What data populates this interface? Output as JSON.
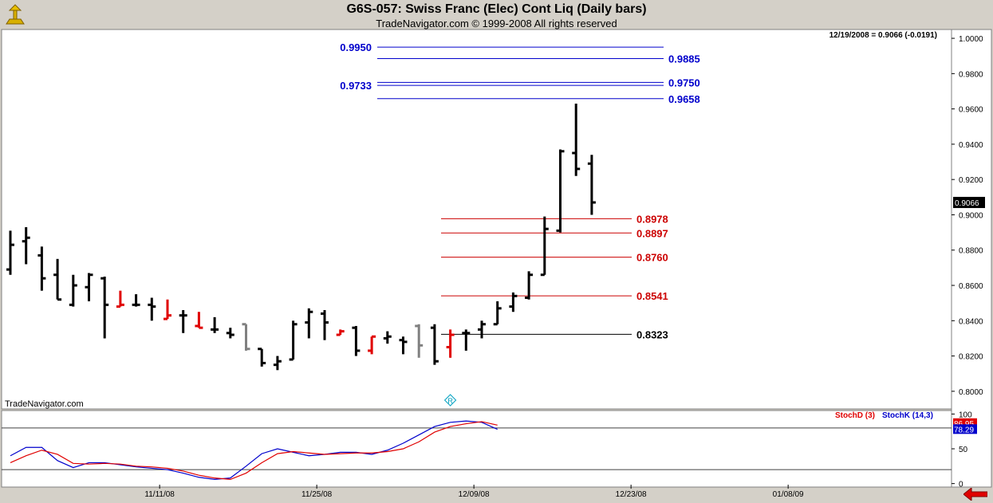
{
  "header": {
    "title": "G6S-057:  Swiss Franc (Elec) Cont Liq  (Daily bars)",
    "subtitle": "TradeNavigator.com © 1999-2008 All rights reserved",
    "status": "12/19/2008 = 0.9066 (-0.0191)",
    "watermark": "TradeNavigator.com",
    "marker": "R"
  },
  "colors": {
    "up_bar": "#000000",
    "down_bar": "#e00000",
    "neutral_bar": "#808080",
    "fib_upper": "#0000cc",
    "fib_lower": "#cc0000",
    "stoch_d": "#e00000",
    "stoch_k": "#0000cc"
  },
  "chart_data": [
    {
      "type": "ohlc",
      "name": "price",
      "ylim": [
        0.79,
        1.005
      ],
      "y_ticks": [
        "0.8000",
        "0.8200",
        "0.8400",
        "0.8600",
        "0.8800",
        "0.9000",
        "0.9200",
        "0.9400",
        "0.9600",
        "0.9800",
        "1.0000"
      ],
      "y_tick_values": [
        0.8,
        0.82,
        0.84,
        0.86,
        0.88,
        0.9,
        0.92,
        0.94,
        0.96,
        0.98,
        1.0
      ],
      "x_ticks": [
        "11/11/08",
        "11/25/08",
        "12/09/08",
        "12/23/08",
        "01/08/09"
      ],
      "x_tick_index": [
        9.5,
        19.5,
        29.5,
        39.5,
        49.5
      ],
      "last_price_label": "0.9066",
      "bars": [
        {
          "o": 0.869,
          "h": 0.891,
          "l": 0.866,
          "c": 0.883,
          "k": "u"
        },
        {
          "o": 0.885,
          "h": 0.893,
          "l": 0.872,
          "c": 0.887,
          "k": "u"
        },
        {
          "o": 0.877,
          "h": 0.882,
          "l": 0.857,
          "c": 0.864,
          "k": "u"
        },
        {
          "o": 0.866,
          "h": 0.875,
          "l": 0.852,
          "c": 0.852,
          "k": "u"
        },
        {
          "o": 0.849,
          "h": 0.866,
          "l": 0.848,
          "c": 0.86,
          "k": "u"
        },
        {
          "o": 0.859,
          "h": 0.867,
          "l": 0.851,
          "c": 0.866,
          "k": "u"
        },
        {
          "o": 0.864,
          "h": 0.865,
          "l": 0.83,
          "c": 0.849,
          "k": "u"
        },
        {
          "o": 0.848,
          "h": 0.857,
          "l": 0.848,
          "c": 0.849,
          "k": "d"
        },
        {
          "o": 0.849,
          "h": 0.855,
          "l": 0.848,
          "c": 0.849,
          "k": "u"
        },
        {
          "o": 0.849,
          "h": 0.853,
          "l": 0.84,
          "c": 0.848,
          "k": "u"
        },
        {
          "o": 0.841,
          "h": 0.852,
          "l": 0.841,
          "c": 0.843,
          "k": "d"
        },
        {
          "o": 0.843,
          "h": 0.846,
          "l": 0.833,
          "c": 0.843,
          "k": "u"
        },
        {
          "o": 0.837,
          "h": 0.845,
          "l": 0.836,
          "c": 0.836,
          "k": "d"
        },
        {
          "o": 0.835,
          "h": 0.842,
          "l": 0.833,
          "c": 0.835,
          "k": "u"
        },
        {
          "o": 0.833,
          "h": 0.836,
          "l": 0.83,
          "c": 0.832,
          "k": "u"
        },
        {
          "o": 0.838,
          "h": 0.838,
          "l": 0.823,
          "c": 0.824,
          "k": "n"
        },
        {
          "o": 0.824,
          "h": 0.824,
          "l": 0.814,
          "c": 0.816,
          "k": "u"
        },
        {
          "o": 0.815,
          "h": 0.82,
          "l": 0.812,
          "c": 0.817,
          "k": "u"
        },
        {
          "o": 0.818,
          "h": 0.84,
          "l": 0.818,
          "c": 0.838,
          "k": "u"
        },
        {
          "o": 0.839,
          "h": 0.847,
          "l": 0.83,
          "c": 0.845,
          "k": "u"
        },
        {
          "o": 0.844,
          "h": 0.846,
          "l": 0.829,
          "c": 0.839,
          "k": "u"
        },
        {
          "o": 0.832,
          "h": 0.835,
          "l": 0.832,
          "c": 0.834,
          "k": "d"
        },
        {
          "o": 0.836,
          "h": 0.837,
          "l": 0.82,
          "c": 0.823,
          "k": "u"
        },
        {
          "o": 0.823,
          "h": 0.831,
          "l": 0.821,
          "c": 0.831,
          "k": "d"
        },
        {
          "o": 0.83,
          "h": 0.834,
          "l": 0.827,
          "c": 0.831,
          "k": "u"
        },
        {
          "o": 0.829,
          "h": 0.831,
          "l": 0.821,
          "c": 0.828,
          "k": "u"
        },
        {
          "o": 0.837,
          "h": 0.838,
          "l": 0.819,
          "c": 0.826,
          "k": "n"
        },
        {
          "o": 0.836,
          "h": 0.838,
          "l": 0.815,
          "c": 0.817,
          "k": "u"
        },
        {
          "o": 0.825,
          "h": 0.835,
          "l": 0.819,
          "c": 0.832,
          "k": "d"
        },
        {
          "o": 0.833,
          "h": 0.835,
          "l": 0.823,
          "c": 0.833,
          "k": "u"
        },
        {
          "o": 0.835,
          "h": 0.84,
          "l": 0.83,
          "c": 0.838,
          "k": "u"
        },
        {
          "o": 0.838,
          "h": 0.851,
          "l": 0.838,
          "c": 0.847,
          "k": "u"
        },
        {
          "o": 0.848,
          "h": 0.856,
          "l": 0.845,
          "c": 0.854,
          "k": "u"
        },
        {
          "o": 0.853,
          "h": 0.868,
          "l": 0.852,
          "c": 0.866,
          "k": "u"
        },
        {
          "o": 0.866,
          "h": 0.899,
          "l": 0.866,
          "c": 0.892,
          "k": "u"
        },
        {
          "o": 0.891,
          "h": 0.937,
          "l": 0.89,
          "c": 0.936,
          "k": "u"
        },
        {
          "o": 0.935,
          "h": 0.963,
          "l": 0.922,
          "c": 0.926,
          "k": "u"
        },
        {
          "o": 0.929,
          "h": 0.934,
          "l": 0.9,
          "c": 0.907,
          "k": "u"
        }
      ],
      "fib_lines_upper": [
        {
          "value": 0.995,
          "label": "0.9950",
          "side": "left"
        },
        {
          "value": 0.9885,
          "label": "0.9885",
          "side": "right"
        },
        {
          "value": 0.975,
          "label": "0.9750",
          "side": "right"
        },
        {
          "value": 0.9733,
          "label": "0.9733",
          "side": "left"
        },
        {
          "value": 0.9658,
          "label": "0.9658",
          "side": "right"
        }
      ],
      "fib_lines_lower": [
        {
          "value": 0.8978,
          "label": "0.8978"
        },
        {
          "value": 0.8897,
          "label": "0.8897"
        },
        {
          "value": 0.876,
          "label": "0.8760"
        },
        {
          "value": 0.8541,
          "label": "0.8541"
        },
        {
          "value": 0.8323,
          "label": "0.8323",
          "color": "black"
        }
      ]
    },
    {
      "type": "line",
      "name": "stochastic",
      "ylim": [
        -5,
        105
      ],
      "y_ticks": [
        "0",
        "50",
        "100"
      ],
      "y_tick_values": [
        0,
        50,
        100
      ],
      "guide_levels": [
        20,
        80
      ],
      "legend": [
        "StochD (3)",
        "StochK (14,3)"
      ],
      "last_values": [
        "86.95",
        "78.29"
      ],
      "series": [
        {
          "name": "StochK (14,3)",
          "values": [
            40,
            52,
            52,
            33,
            23,
            30,
            30,
            27,
            24,
            22,
            20,
            15,
            9,
            6,
            8,
            25,
            43,
            50,
            45,
            40,
            42,
            45,
            45,
            42,
            48,
            58,
            70,
            82,
            88,
            90,
            88,
            78
          ]
        },
        {
          "name": "StochD (3)",
          "values": [
            30,
            40,
            48,
            42,
            29,
            28,
            29,
            28,
            25,
            24,
            22,
            18,
            12,
            8,
            6,
            15,
            30,
            43,
            46,
            44,
            42,
            43,
            44,
            44,
            46,
            50,
            60,
            74,
            82,
            86,
            89,
            84
          ]
        }
      ]
    }
  ]
}
